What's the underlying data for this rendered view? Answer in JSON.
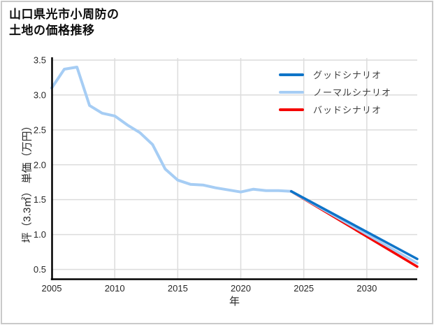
{
  "header": {
    "title_line1": "山口県光市小周防の",
    "title_line2": "土地の価格推移"
  },
  "chart_data": {
    "type": "line",
    "title": "山口県光市小周防の土地の価格推移",
    "xlabel": "年",
    "ylabel": "坪（3.3㎡） 単価（万円）",
    "x_ticks": [
      2005,
      2010,
      2015,
      2020,
      2025,
      2030
    ],
    "y_ticks": [
      0.5,
      1.0,
      1.5,
      2.0,
      2.5,
      3.0,
      3.5
    ],
    "x_range": [
      2005,
      2034
    ],
    "y_range": [
      0.36,
      3.53
    ],
    "grid": true,
    "legend_position": "top-right",
    "history": {
      "color": "#a6cdf4",
      "x": [
        2005,
        2006,
        2007,
        2008,
        2009,
        2010,
        2011,
        2012,
        2013,
        2014,
        2015,
        2016,
        2017,
        2018,
        2019,
        2020,
        2021,
        2022,
        2023,
        2024
      ],
      "y": [
        3.1,
        3.37,
        3.4,
        2.85,
        2.74,
        2.7,
        2.57,
        2.46,
        2.29,
        1.94,
        1.78,
        1.72,
        1.71,
        1.67,
        1.64,
        1.61,
        1.65,
        1.63,
        1.63,
        1.62
      ]
    },
    "series": [
      {
        "name": "グッドシナリオ",
        "color": "#0e74c8",
        "x": [
          2024,
          2034
        ],
        "y": [
          1.62,
          0.65
        ]
      },
      {
        "name": "ノーマルシナリオ",
        "color": "#a6cdf4",
        "x": [
          2024,
          2034
        ],
        "y": [
          1.62,
          0.59
        ]
      },
      {
        "name": "バッドシナリオ",
        "color": "#f40400",
        "x": [
          2024,
          2034
        ],
        "y": [
          1.62,
          0.54
        ]
      }
    ]
  },
  "styles": {
    "grid_color": "#dcdcdc",
    "axis_color": "#000000",
    "tick_color": "#262626",
    "legend_text_color": "#3d3d3d",
    "border_color": "#c9c9c9"
  }
}
